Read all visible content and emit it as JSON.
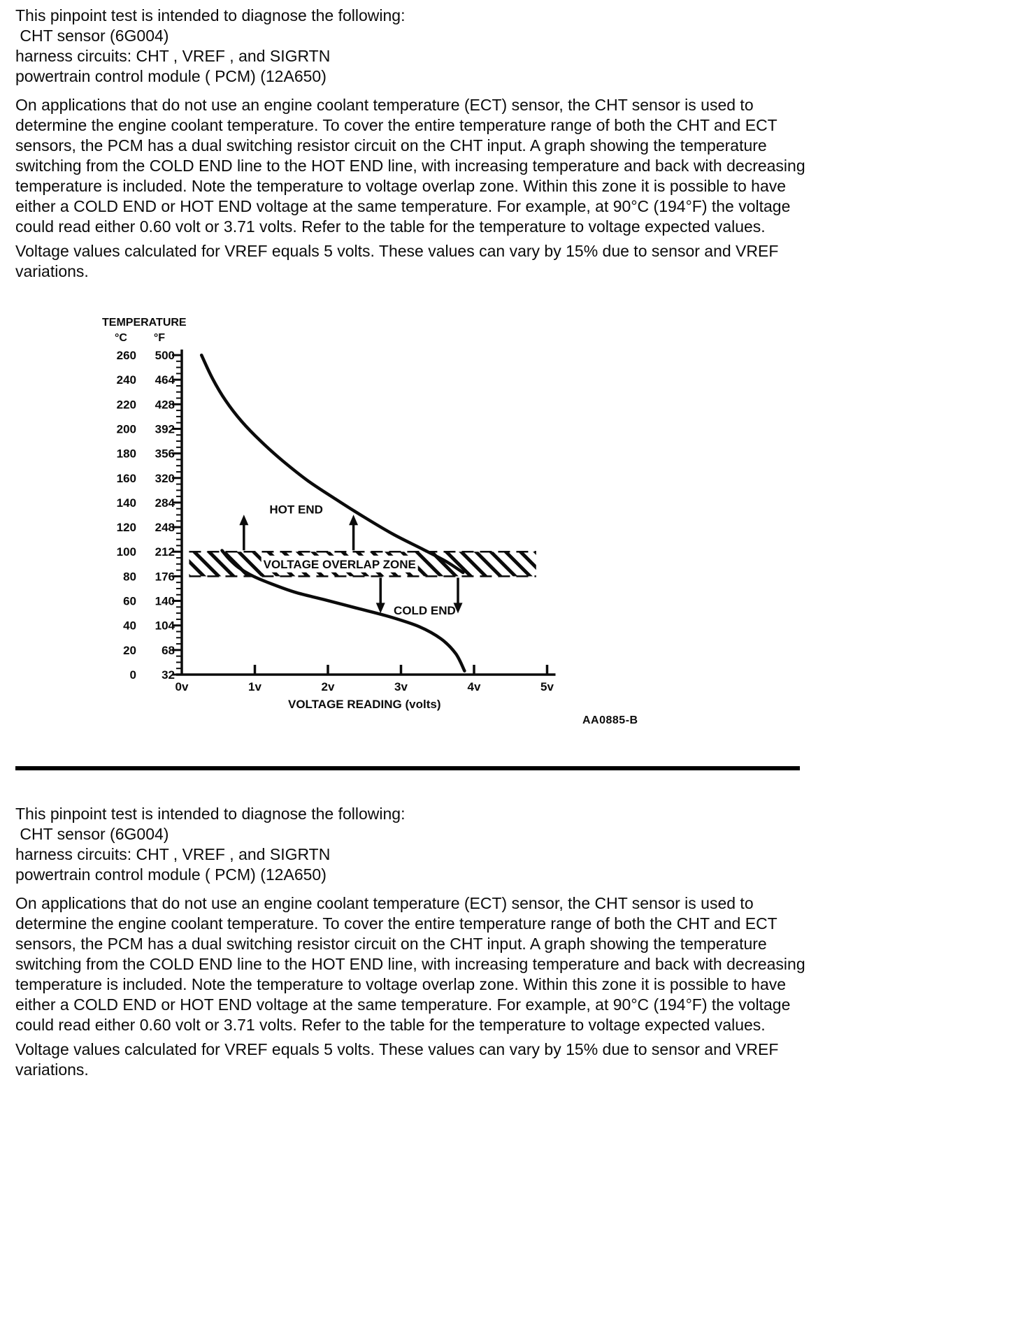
{
  "colors": {
    "background": "#ffffff",
    "ink": "#0b0b0b"
  },
  "content": {
    "intro_lines": [
      "This pinpoint test is intended to diagnose the following:",
      " CHT sensor (6G004)",
      "harness circuits: CHT , VREF , and SIGRTN",
      "powertrain control module ( PCM) (12A650)"
    ],
    "paragraph1": "On applications that do not use an engine coolant temperature (ECT) sensor, the CHT sensor is used to determine the engine coolant temperature. To cover the entire temperature range of both the CHT and ECT sensors, the PCM has a dual switching resistor circuit on the CHT input. A graph showing the temperature switching from the COLD END line to the HOT END line, with increasing temperature and back with decreasing temperature is included. Note the temperature to voltage overlap zone. Within this zone it is possible to have either a COLD END or HOT END voltage at the same temperature. For example, at 90°C (194°F) the voltage could read either 0.60 volt or 3.71 volts. Refer to the table for the temperature to voltage expected values.",
    "paragraph2": "Voltage values calculated for VREF equals 5 volts. These values can vary by 15% due to sensor and VREF variations."
  },
  "figure": {
    "code": "AA0885-B"
  },
  "chart_data": {
    "type": "line",
    "title": "",
    "xlabel": "VOLTAGE READING (volts)",
    "ylabel": "TEMPERATURE",
    "grid": false,
    "legend": "none",
    "xlim_volts": [
      0,
      5
    ],
    "ylim": [
      0,
      260
    ],
    "x_axis": {
      "ticks": [
        "0v",
        "1v",
        "2v",
        "3v",
        "4v",
        "5v"
      ]
    },
    "y_axis": {
      "header": "TEMPERATURE",
      "unit_headers": [
        "°C",
        "°F"
      ],
      "ticks_c": [
        260,
        240,
        220,
        200,
        180,
        160,
        140,
        120,
        100,
        80,
        60,
        40,
        20,
        0
      ],
      "ticks_f": [
        500,
        464,
        428,
        392,
        356,
        320,
        284,
        248,
        212,
        176,
        140,
        104,
        68,
        32
      ],
      "minor_tick_step_c": 5
    },
    "series": [
      {
        "name": "HOT END",
        "label_pos": [
          1.2,
          131
        ],
        "points": [
          [
            0.27,
            260
          ],
          [
            0.42,
            241
          ],
          [
            0.6,
            223
          ],
          [
            0.82,
            206
          ],
          [
            1.08,
            190
          ],
          [
            1.38,
            174
          ],
          [
            1.72,
            158
          ],
          [
            2.1,
            143
          ],
          [
            2.5,
            128
          ],
          [
            2.9,
            114
          ],
          [
            3.3,
            102
          ],
          [
            3.62,
            92
          ],
          [
            3.85,
            83
          ]
        ]
      },
      {
        "name": "COLD END",
        "label_pos": [
          2.9,
          49
        ],
        "points": [
          [
            0.55,
            101
          ],
          [
            0.65,
            94
          ],
          [
            0.78,
            87
          ],
          [
            0.98,
            80
          ],
          [
            1.22,
            74
          ],
          [
            1.55,
            67
          ],
          [
            1.95,
            61
          ],
          [
            2.4,
            54
          ],
          [
            2.85,
            47
          ],
          [
            3.25,
            39
          ],
          [
            3.55,
            29
          ],
          [
            3.75,
            17
          ],
          [
            3.87,
            3
          ]
        ]
      }
    ],
    "overlap_zone": {
      "label": "VOLTAGE OVERLAP ZONE",
      "temp_range_c": [
        80,
        100
      ],
      "x_range_v": [
        0.1,
        4.85
      ],
      "label_center_v": 2.16
    },
    "annotations": {
      "up_arrows_v": [
        0.85,
        2.35
      ],
      "down_arrows_v": [
        2.72,
        3.78
      ]
    },
    "example_reading": {
      "temp_c": 90,
      "temp_f": 194,
      "cold_end_volts": 0.6,
      "hot_end_volts": 3.71
    }
  }
}
